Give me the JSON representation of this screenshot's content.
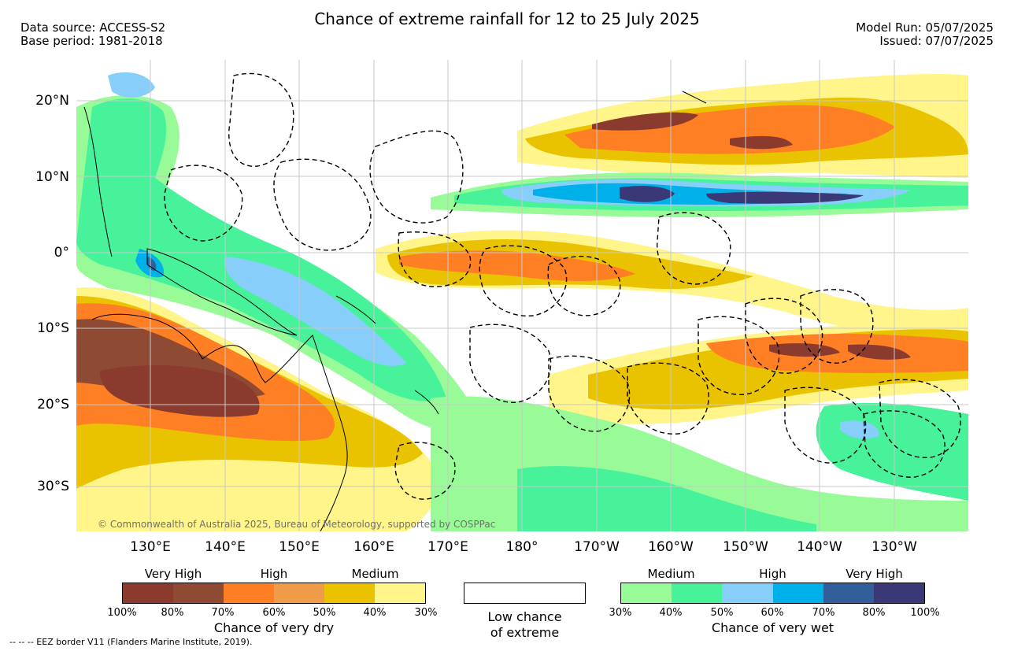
{
  "header": {
    "title": "Chance of extreme rainfall for 12 to 25 July 2025",
    "left_line1": "Data source: ACCESS-S2",
    "left_line2": "Base period: 1981-2018",
    "right_line1": "Model Run: 05/07/2025",
    "right_line2": "Issued: 07/07/2025"
  },
  "map": {
    "lat_labels": [
      "20°N",
      "10°N",
      "0°",
      "10°S",
      "20°S",
      "30°S"
    ],
    "lon_labels": [
      "130°E",
      "140°E",
      "150°E",
      "160°E",
      "170°E",
      "180°",
      "170°W",
      "160°W",
      "150°W",
      "140°W",
      "130°W"
    ],
    "credit": "© Commonwealth of Australia 2025, Bureau of Meteorology, supported by COSPPac",
    "colors": {
      "dry_very_high_dark": "#8b3a2e",
      "dry_very_high": "#8e4a32",
      "dry_high_dark": "#ff7f24",
      "dry_high": "#ee9b4a",
      "dry_medium_dark": "#eac300",
      "dry_medium": "#fff58a",
      "wet_medium": "#98fb98",
      "wet_medium_dark": "#47f29a",
      "wet_high": "#87cefa",
      "wet_high_dark": "#00b0e8",
      "wet_very_high": "#325e9a",
      "wet_very_high_dark": "#3b3878",
      "land_outline": "#000000",
      "grid": "#c8c8c8"
    }
  },
  "legend": {
    "dry": {
      "headers": [
        "Very High",
        "High",
        "Medium"
      ],
      "ticks": [
        "100%",
        "80%",
        "70%",
        "60%",
        "50%",
        "40%",
        "30%"
      ],
      "caption": "Chance of very dry",
      "colors": [
        "#8b3a2e",
        "#8e4a32",
        "#ff7f24",
        "#ee9b4a",
        "#eac300",
        "#fff58a"
      ]
    },
    "low": {
      "caption_line1": "Low chance",
      "caption_line2": "of extreme"
    },
    "wet": {
      "headers": [
        "Medium",
        "High",
        "Very High"
      ],
      "ticks": [
        "30%",
        "40%",
        "50%",
        "60%",
        "70%",
        "80%",
        "100%"
      ],
      "caption": "Chance of very wet",
      "colors": [
        "#98fb98",
        "#47f29a",
        "#87cefa",
        "#00b0e8",
        "#325e9a",
        "#3b3878"
      ]
    }
  },
  "footer": {
    "eez_note": "-- -- -- EEZ border V11 (Flanders Marine Institute, 2019)."
  }
}
